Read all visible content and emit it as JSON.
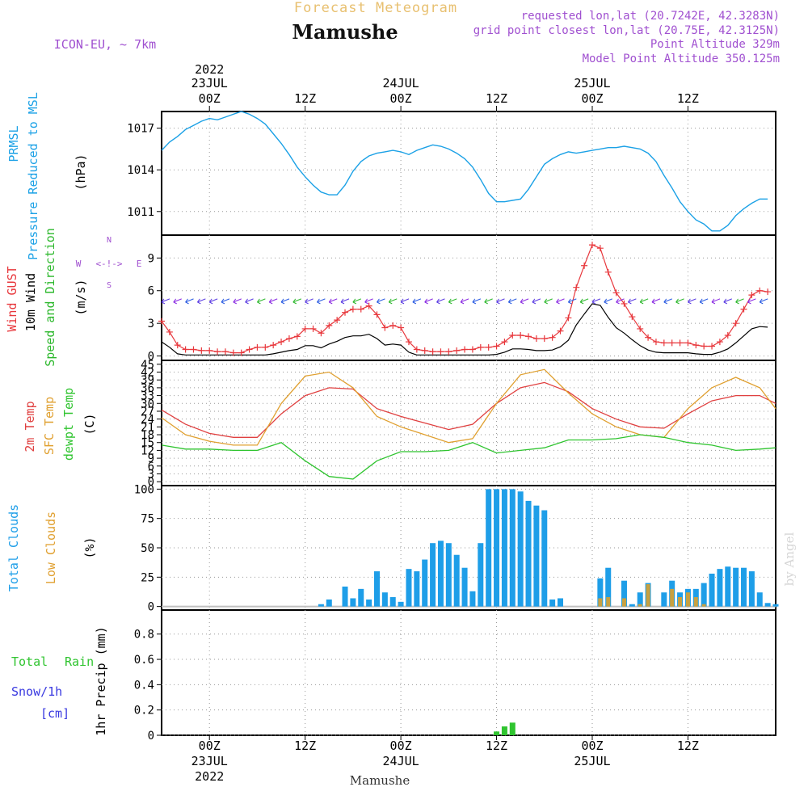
{
  "header": {
    "product": "Forecast Meteogram",
    "location": "Mamushe",
    "model": "ICON-EU, ~ 7km",
    "requested": "requested lon,lat (20.7242E, 42.3283N)",
    "gridpoint": "grid point closest lon,lat (20.75E, 42.3125N)",
    "point_altitude": "Point Altitude 329m",
    "model_altitude": "Model Point Altitude 350.125m",
    "footer_location": "Mamushe",
    "watermark": "by Angel"
  },
  "time_axis": {
    "top_labels": [
      {
        "h": 0,
        "lines": [
          "2022",
          "23JUL",
          "00Z"
        ]
      },
      {
        "h": 12,
        "lines": [
          "12Z"
        ]
      },
      {
        "h": 24,
        "lines": [
          "24JUL",
          "00Z"
        ]
      },
      {
        "h": 36,
        "lines": [
          "12Z"
        ]
      },
      {
        "h": 48,
        "lines": [
          "25JUL",
          "00Z"
        ]
      },
      {
        "h": 60,
        "lines": [
          "12Z"
        ]
      }
    ],
    "bottom_labels": [
      {
        "h": 0,
        "lines": [
          "00Z",
          "23JUL",
          "2022"
        ]
      },
      {
        "h": 12,
        "lines": [
          "12Z"
        ]
      },
      {
        "h": 24,
        "lines": [
          "00Z",
          "24JUL"
        ]
      },
      {
        "h": 36,
        "lines": [
          "12Z"
        ]
      },
      {
        "h": 48,
        "lines": [
          "00Z",
          "25JUL"
        ]
      },
      {
        "h": 60,
        "lines": [
          "12Z"
        ]
      }
    ],
    "range_hours": [
      -6,
      71
    ]
  },
  "colors": {
    "pressure": "#1ba1e6",
    "gust": "#e8383d",
    "wind": "#000000",
    "direction": "#2db82d",
    "t2m": "#e04040",
    "tsfc": "#e0a030",
    "dewpt": "#2fc42f",
    "total_clouds": "#1e9ee8",
    "low_clouds": "#c8a040",
    "rain": "#2fc42f",
    "snow": "#3838e0",
    "purple": "#a050d0",
    "gray": "#777777"
  },
  "chart_data": [
    {
      "type": "line",
      "panel": "pressure",
      "labels": [
        "PRMSL",
        "Pressure Reduced to MSL"
      ],
      "unit": "(hPa)",
      "yticks": [
        1011,
        1014,
        1017
      ],
      "ylim": [
        1009.3,
        1018.2
      ],
      "series": [
        {
          "name": "PRMSL",
          "x": [
            -6,
            -5,
            -4,
            -3,
            -2,
            -1,
            0,
            1,
            2,
            3,
            4,
            5,
            6,
            7,
            8,
            9,
            10,
            11,
            12,
            13,
            14,
            15,
            16,
            17,
            18,
            19,
            20,
            21,
            22,
            23,
            24,
            25,
            26,
            27,
            28,
            29,
            30,
            31,
            32,
            33,
            34,
            35,
            36,
            37,
            38,
            39,
            40,
            41,
            42,
            43,
            44,
            45,
            46,
            47,
            48,
            49,
            50,
            51,
            52,
            53,
            54,
            55,
            56,
            57,
            58,
            59,
            60,
            61,
            62,
            63,
            64,
            65,
            66,
            67,
            68,
            69,
            70
          ],
          "y": [
            1015.4,
            1016.0,
            1016.4,
            1016.9,
            1017.2,
            1017.5,
            1017.7,
            1017.6,
            1017.8,
            1018.0,
            1018.2,
            1018.0,
            1017.7,
            1017.3,
            1016.6,
            1015.9,
            1015.1,
            1014.2,
            1013.5,
            1012.9,
            1012.4,
            1012.2,
            1012.2,
            1012.9,
            1013.9,
            1014.6,
            1015.0,
            1015.2,
            1015.3,
            1015.4,
            1015.3,
            1015.1,
            1015.4,
            1015.6,
            1015.8,
            1015.7,
            1015.5,
            1015.2,
            1014.8,
            1014.2,
            1013.3,
            1012.3,
            1011.7,
            1011.7,
            1011.8,
            1011.9,
            1012.6,
            1013.5,
            1014.4,
            1014.8,
            1015.1,
            1015.3,
            1015.2,
            1015.3,
            1015.4,
            1015.5,
            1015.6,
            1015.6,
            1015.7,
            1015.6,
            1015.5,
            1015.2,
            1014.6,
            1013.6,
            1012.7,
            1011.7,
            1011.0,
            1010.4,
            1010.1,
            1009.6,
            1009.6,
            1010.0,
            1010.7,
            1011.2,
            1011.6,
            1011.9,
            1011.9
          ]
        }
      ]
    },
    {
      "type": "line",
      "panel": "wind",
      "labels": [
        "Wind GUST",
        "10m Wind",
        "Speed and Direction"
      ],
      "unit": "(m/s)",
      "compass": {
        "n": "N",
        "s": "S",
        "w": "W",
        "e": "E",
        "we": "<-!->"
      },
      "yticks": [
        0,
        3,
        6,
        9
      ],
      "ylim": [
        -0.4,
        11.1
      ],
      "series": [
        {
          "name": "Wind GUST",
          "x": [
            -6,
            -5,
            -4,
            -3,
            -2,
            -1,
            0,
            1,
            2,
            3,
            4,
            5,
            6,
            7,
            8,
            9,
            10,
            11,
            12,
            13,
            14,
            15,
            16,
            17,
            18,
            19,
            20,
            21,
            22,
            23,
            24,
            25,
            26,
            27,
            28,
            29,
            30,
            31,
            32,
            33,
            34,
            35,
            36,
            37,
            38,
            39,
            40,
            41,
            42,
            43,
            44,
            45,
            46,
            47,
            48,
            49,
            50,
            51,
            52,
            53,
            54,
            55,
            56,
            57,
            58,
            59,
            60,
            61,
            62,
            63,
            64,
            65,
            66,
            67,
            68,
            69,
            70
          ],
          "y": [
            3.2,
            2.2,
            1.0,
            0.6,
            0.6,
            0.5,
            0.5,
            0.4,
            0.4,
            0.3,
            0.3,
            0.6,
            0.8,
            0.8,
            1.0,
            1.3,
            1.6,
            1.8,
            2.5,
            2.5,
            2.1,
            2.8,
            3.3,
            4.0,
            4.3,
            4.3,
            4.6,
            3.8,
            2.6,
            2.8,
            2.6,
            1.3,
            0.6,
            0.5,
            0.4,
            0.4,
            0.4,
            0.5,
            0.6,
            0.6,
            0.8,
            0.8,
            0.9,
            1.3,
            1.9,
            1.9,
            1.8,
            1.6,
            1.6,
            1.7,
            2.3,
            3.5,
            6.3,
            8.3,
            10.2,
            9.9,
            7.7,
            5.8,
            4.8,
            3.6,
            2.5,
            1.7,
            1.3,
            1.2,
            1.2,
            1.2,
            1.2,
            1.0,
            0.9,
            0.9,
            1.3,
            1.9,
            3.0,
            4.3,
            5.6,
            6.0,
            5.9
          ]
        }
      ]
    },
    {
      "type": "line",
      "panel": "temperature",
      "labels": [
        "2m Temp",
        "SFC Temp",
        "dewpt Temp"
      ],
      "unit": "(C)",
      "yticks": [
        0,
        3,
        6,
        9,
        12,
        15,
        18,
        21,
        24,
        27,
        30,
        33,
        36,
        39,
        42,
        45
      ],
      "ylim": [
        -1.5,
        46.5
      ],
      "series": [
        {
          "name": "2m Temp",
          "x": [
            -6,
            -3,
            0,
            3,
            6,
            9,
            12,
            15,
            18,
            21,
            24,
            27,
            30,
            33,
            36,
            39,
            42,
            45,
            48,
            51,
            54,
            57,
            60,
            63,
            66,
            69,
            72
          ],
          "y": [
            27.5,
            22,
            18.5,
            17,
            17,
            26,
            33,
            36,
            35.5,
            28,
            25,
            22.5,
            20,
            22,
            30,
            36,
            38,
            34.5,
            28,
            24,
            21,
            20.5,
            26,
            31,
            33,
            33,
            30
          ]
        },
        {
          "name": "SFC Temp",
          "x": [
            -6,
            -3,
            0,
            3,
            6,
            9,
            12,
            15,
            18,
            21,
            24,
            27,
            30,
            33,
            36,
            39,
            42,
            45,
            48,
            51,
            54,
            57,
            60,
            63,
            66,
            69,
            72
          ],
          "y": [
            24.5,
            18,
            15.5,
            14,
            14,
            30,
            40.5,
            42,
            36,
            25,
            21,
            18,
            15,
            16.5,
            30,
            41,
            43,
            34,
            26,
            21,
            18,
            17,
            28,
            36,
            40,
            36,
            28
          ]
        },
        {
          "name": "dewpt Temp",
          "x": [
            -6,
            -3,
            0,
            3,
            6,
            9,
            12,
            15,
            18,
            21,
            24,
            27,
            30,
            33,
            36,
            39,
            42,
            45,
            48,
            51,
            54,
            57,
            60,
            63,
            66,
            69,
            72
          ],
          "y": [
            14,
            12.5,
            12.5,
            12,
            12,
            15,
            8,
            2,
            1,
            8,
            11.5,
            11.5,
            12,
            15,
            11,
            12,
            13,
            16,
            16,
            16.5,
            18,
            17,
            15,
            14,
            12,
            12.5,
            13
          ]
        }
      ]
    },
    {
      "type": "bar",
      "panel": "clouds",
      "labels": [
        "Total Clouds",
        "Low Clouds"
      ],
      "unit": "(%)",
      "yticks": [
        0,
        25,
        50,
        75,
        100
      ],
      "ylim": [
        -3,
        103
      ],
      "x": [
        14,
        15,
        17,
        18,
        19,
        20,
        21,
        22,
        23,
        24,
        25,
        26,
        27,
        28,
        29,
        30,
        31,
        32,
        33,
        34,
        35,
        36,
        37,
        38,
        39,
        40,
        41,
        42,
        43,
        44,
        45,
        46,
        49,
        50,
        52,
        53,
        54,
        55,
        57,
        58,
        59,
        60,
        61,
        62,
        63,
        64,
        65,
        66,
        67,
        68,
        69,
        70,
        71
      ],
      "series": [
        {
          "name": "Total Clouds",
          "values": [
            2,
            6,
            17,
            7,
            15,
            6,
            30,
            12,
            8,
            4,
            32,
            30,
            40,
            54,
            56,
            54,
            44,
            33,
            13,
            54,
            100,
            100,
            100,
            100,
            98,
            90,
            86,
            82,
            6,
            7,
            0,
            0,
            24,
            33,
            22,
            2,
            12,
            20,
            12,
            22,
            12,
            15,
            15,
            20,
            28,
            32,
            34,
            33,
            33,
            30,
            12,
            3,
            2
          ]
        },
        {
          "name": "Low Clouds",
          "values": [
            0,
            0,
            0,
            0,
            0,
            0,
            0,
            0,
            0,
            0,
            0,
            0,
            0,
            0,
            0,
            0,
            0,
            0,
            0,
            0,
            0,
            0,
            0,
            0,
            0,
            0,
            0,
            0,
            0,
            0,
            0,
            0,
            7,
            8,
            7,
            0,
            2,
            19,
            0,
            15,
            8,
            12,
            8,
            2,
            0,
            0,
            0,
            0,
            0,
            0,
            0,
            0,
            0
          ]
        }
      ]
    },
    {
      "type": "bar",
      "panel": "precip",
      "labels": [
        "Total",
        "Rain",
        "Snow/1h",
        "[cm]"
      ],
      "unit": "1hr Precip (mm)",
      "yticks": [
        "0",
        "0.2",
        "0.4",
        "0.6",
        "0.8"
      ],
      "ylim": [
        0,
        0.99
      ],
      "x": [
        36,
        37,
        38
      ],
      "series": [
        {
          "name": "Total Rain",
          "values": [
            0.03,
            0.07,
            0.1
          ]
        }
      ]
    }
  ]
}
